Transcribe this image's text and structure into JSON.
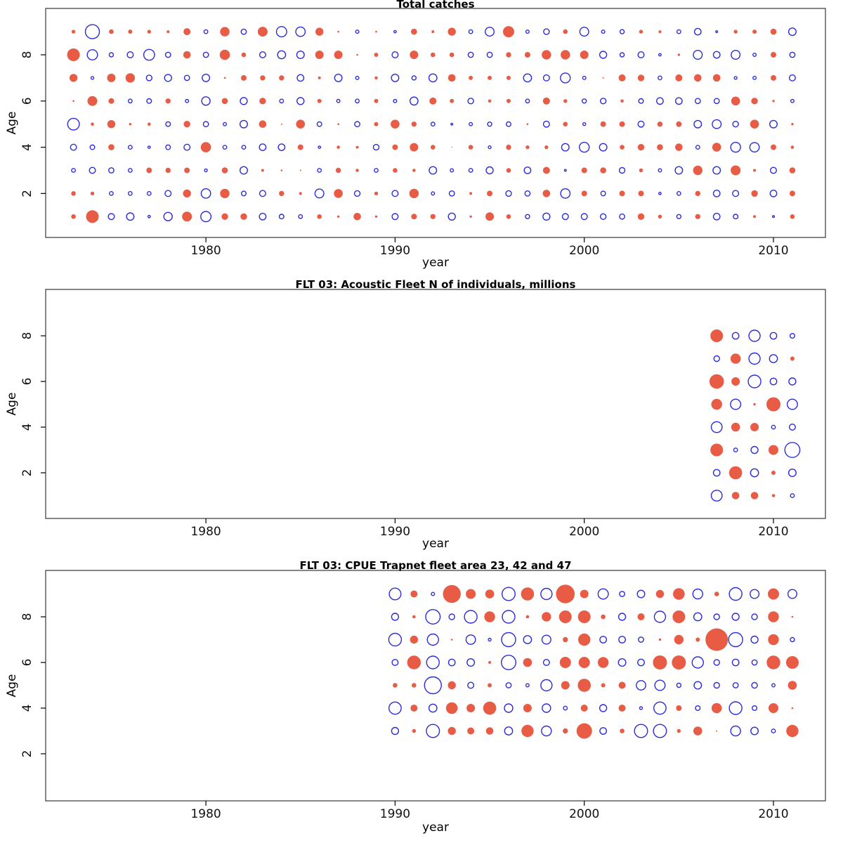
{
  "colors": {
    "bubble_positive_fill": "#E85C45",
    "bubble_negative_stroke": "#2C2CDC",
    "box_stroke": "#444444",
    "tick_stroke": "#000000"
  },
  "chart_data": [
    {
      "type": "bubble",
      "title": "Total catches",
      "xlabel": "year",
      "ylabel": "Age",
      "x_ticks": [
        1980,
        1990,
        2000,
        2010
      ],
      "y_ticks": [
        2,
        4,
        6,
        8
      ],
      "x_range": [
        1973,
        2011
      ],
      "age_range": [
        1,
        9
      ],
      "value_encoding": "signed bubble radius px: positive = red filled circle, negative = blue open circle",
      "rows": [
        {
          "age": 9,
          "start_year": 1973,
          "values": [
            2.7,
            -10,
            3.3,
            3,
            2.7,
            2,
            5,
            -2.7,
            6.7,
            -3.7,
            7,
            -7.3,
            -6.7,
            5.7,
            1.3,
            -2.3,
            1.3,
            -1.7,
            4.3,
            2,
            5.7,
            -2.7,
            -6.3,
            8,
            -2.3,
            -4,
            3.3,
            -6.3,
            -2.3,
            -3,
            2.7,
            2,
            -2.7,
            -4.7,
            -1.3,
            2.7,
            3,
            4.3,
            -5.3
          ]
        },
        {
          "age": 8,
          "start_year": 1973,
          "values": [
            9,
            -7.3,
            -3,
            -4.3,
            -7.7,
            -3.7,
            5.3,
            -3.7,
            7.3,
            3.3,
            -4.3,
            -5.7,
            -5.3,
            6,
            6,
            1.3,
            3,
            -4.3,
            6,
            3.3,
            3.3,
            -3.7,
            -3.7,
            3.7,
            4,
            6.7,
            6.7,
            6,
            -5,
            -3,
            -4.3,
            -1.7,
            1.7,
            -6.3,
            -4.7,
            -6.3,
            -2.3,
            4,
            -3.7
          ]
        },
        {
          "age": 7,
          "start_year": 1973,
          "values": [
            5.7,
            -2,
            6,
            6.7,
            -4,
            -5,
            -3.7,
            -5.3,
            1.3,
            4,
            3.7,
            3.7,
            -4.7,
            2,
            -5.3,
            -2.3,
            2.3,
            -5.3,
            -3,
            -5.7,
            5.3,
            3,
            3,
            3,
            -5.7,
            -4.3,
            -7,
            -2.3,
            1,
            5,
            4.7,
            -2.7,
            5,
            5.3,
            5.3,
            -2,
            -2.3,
            4,
            -4.3
          ]
        },
        {
          "age": 6,
          "start_year": 1973,
          "values": [
            1.3,
            7,
            4,
            -2.7,
            -3.3,
            3.7,
            -2.3,
            -6,
            4.3,
            -5,
            4.7,
            -2.7,
            -5,
            3,
            -2.3,
            -2.7,
            3,
            -2.3,
            -5.7,
            5,
            3,
            -4,
            2.3,
            3,
            -2.7,
            5,
            2.7,
            -3,
            -4,
            2.3,
            -3.3,
            -4.7,
            -4.7,
            -3.7,
            -3.7,
            6.3,
            4.7,
            1.7,
            -2.3
          ]
        },
        {
          "age": 5,
          "start_year": 1973,
          "values": [
            -8.3,
            2.3,
            5.7,
            1.7,
            2.3,
            -3.3,
            4.7,
            -3.7,
            -2.3,
            -5.3,
            5.3,
            1,
            6.3,
            -3.3,
            1.3,
            -3.7,
            3,
            6.3,
            3.7,
            -2.7,
            -1.3,
            -2.3,
            -3,
            -3.3,
            1.3,
            -4.3,
            3.3,
            -2,
            4,
            4,
            -4.3,
            3.7,
            4,
            -5.3,
            -6.3,
            -4,
            6.3,
            -5.3,
            1.7
          ]
        },
        {
          "age": 4,
          "start_year": 1973,
          "values": [
            -4.3,
            -3.3,
            4.3,
            -2.7,
            -1.7,
            -3.3,
            -4.3,
            7.3,
            -2.7,
            -2.7,
            -4.7,
            -4.7,
            4,
            -1.7,
            2.3,
            2,
            -4,
            4,
            6,
            3.3,
            0.7,
            3.3,
            -2,
            3.7,
            2.7,
            2.7,
            -5.3,
            -7,
            -5.3,
            3.3,
            4.7,
            4.3,
            5.3,
            -2.7,
            6.3,
            -7,
            -6.7,
            4,
            2.3
          ]
        },
        {
          "age": 3,
          "start_year": 1973,
          "values": [
            -2.7,
            -4.3,
            -3.7,
            -2.7,
            4,
            3.7,
            4,
            -2,
            4.3,
            -5.3,
            2,
            1.3,
            1,
            -2.7,
            3.7,
            2.3,
            -2.7,
            3.3,
            2.3,
            -5.3,
            -2.3,
            -2.7,
            -5,
            3.3,
            -4.7,
            5,
            -1.3,
            4,
            4.3,
            -4,
            2.7,
            -2.3,
            -5.3,
            6.7,
            -5.3,
            7,
            2,
            -4.3,
            4.3
          ]
        },
        {
          "age": 2,
          "start_year": 1973,
          "values": [
            3.3,
            2.7,
            -2.7,
            -2.7,
            -2.7,
            -4.3,
            5.7,
            -6.7,
            6.7,
            -3.3,
            -4.3,
            3.7,
            2,
            -6.3,
            6.3,
            -4,
            2.7,
            -4.3,
            6.7,
            -2.3,
            -3.7,
            2,
            4,
            -4,
            -3.7,
            5.3,
            -6.7,
            4,
            -3.3,
            4,
            4,
            -1.7,
            -2.7,
            3.7,
            -4.7,
            -4.3,
            4.7,
            -4.7,
            4
          ]
        },
        {
          "age": 1,
          "start_year": 1973,
          "values": [
            3.3,
            9,
            -4.3,
            -5.3,
            -1.7,
            -6,
            7,
            -7.3,
            4.7,
            4.7,
            -4.7,
            -3.3,
            -2.7,
            3.3,
            1.7,
            5.3,
            1.7,
            -4.3,
            4,
            3.7,
            -5,
            1.7,
            6,
            3.3,
            -3,
            -5,
            -4.3,
            -4.3,
            -4,
            -3.7,
            4.7,
            2.7,
            -3,
            3.7,
            -4.7,
            -3.3,
            2,
            -1.3,
            3.3
          ]
        }
      ]
    },
    {
      "type": "bubble",
      "title": "FLT 03: Acoustic Fleet  N of individuals, millions",
      "xlabel": "year",
      "ylabel": "Age",
      "x_ticks": [
        1980,
        1990,
        2000,
        2010
      ],
      "y_ticks": [
        2,
        4,
        6,
        8
      ],
      "x_range": [
        2007,
        2011
      ],
      "age_range": [
        1,
        8
      ],
      "value_encoding": "signed bubble radius px: positive = red filled circle, negative = blue open circle",
      "rows": [
        {
          "age": 8,
          "start_year": 2007,
          "values": [
            9,
            -4.7,
            -8,
            -4.7,
            -3.3
          ]
        },
        {
          "age": 7,
          "start_year": 2007,
          "values": [
            -4,
            7.3,
            -8,
            -5.7,
            3
          ]
        },
        {
          "age": 6,
          "start_year": 2007,
          "values": [
            10.3,
            6,
            -9,
            -4.7,
            -5
          ]
        },
        {
          "age": 5,
          "start_year": 2007,
          "values": [
            7.7,
            -7.3,
            1.7,
            10,
            -7.3
          ]
        },
        {
          "age": 4,
          "start_year": 2007,
          "values": [
            -7.7,
            6.3,
            6,
            -2.7,
            -4.3
          ]
        },
        {
          "age": 3,
          "start_year": 2007,
          "values": [
            9,
            -2.7,
            -5,
            7,
            -10.7
          ]
        },
        {
          "age": 2,
          "start_year": 2007,
          "values": [
            -4.7,
            9.3,
            -5.7,
            3,
            -5.3
          ]
        },
        {
          "age": 1,
          "start_year": 2007,
          "values": [
            -7.7,
            5.3,
            5.3,
            2.3,
            -2.7
          ]
        }
      ]
    },
    {
      "type": "bubble",
      "title": "FLT 03: CPUE Trapnet fleet area 23, 42 and 47",
      "xlabel": "year",
      "ylabel": "Age",
      "x_ticks": [
        1980,
        1990,
        2000,
        2010
      ],
      "y_ticks": [
        2,
        4,
        6,
        8
      ],
      "x_range": [
        1990,
        2011
      ],
      "age_range": [
        1,
        9
      ],
      "value_encoding": "signed bubble radius px: positive = red filled circle, negative = blue open circle",
      "rows": [
        {
          "age": 9,
          "start_year": 1990,
          "values": [
            -8.3,
            5,
            -2.3,
            12.7,
            7,
            6.3,
            -9.3,
            9.3,
            -8,
            13.3,
            6,
            -7.3,
            -3.7,
            -5.3,
            5.7,
            8.3,
            -7,
            3.3,
            -9,
            -6.3,
            8,
            -6.3
          ]
        },
        {
          "age": 8,
          "start_year": 1990,
          "values": [
            -5,
            2.3,
            -10.3,
            -4,
            -9,
            7.7,
            -9,
            2.3,
            6.7,
            9,
            9,
            3.3,
            -5,
            5,
            -8,
            9,
            -5.7,
            -4,
            -5,
            -4,
            7.7,
            1.3
          ]
        },
        {
          "age": 7,
          "start_year": 1990,
          "values": [
            -9,
            5.7,
            -8,
            1.3,
            -6.7,
            -2,
            -10,
            -5.7,
            -6.3,
            3.7,
            8.7,
            -4.7,
            -4.7,
            -3.7,
            1.7,
            6.7,
            3,
            16,
            -10,
            -5,
            7.7,
            -3
          ]
        },
        {
          "age": 6,
          "start_year": 1990,
          "values": [
            -4.3,
            9.7,
            -9,
            -4.7,
            -5.3,
            2,
            -10.3,
            6.3,
            -4.3,
            8,
            8,
            7.7,
            -5.3,
            -4.7,
            10,
            10,
            -8,
            -4,
            -4.7,
            -3.7,
            9.7,
            9
          ]
        },
        {
          "age": 5,
          "start_year": 1990,
          "values": [
            3.3,
            3.3,
            -12,
            5.7,
            -4.3,
            3,
            -3.7,
            -2.3,
            -8,
            6,
            9.3,
            3,
            5,
            -6.7,
            -7.3,
            -3,
            -5.3,
            -4,
            -3.7,
            -4,
            -2.3,
            6.3
          ]
        },
        {
          "age": 4,
          "start_year": 1990,
          "values": [
            -8.7,
            5,
            -5.7,
            8.3,
            6,
            9.3,
            -6,
            6,
            -6,
            -2.7,
            5,
            -5,
            5,
            -2,
            -8.7,
            4,
            -3.3,
            7.3,
            -9,
            -3.3,
            7,
            1.3
          ]
        },
        {
          "age": 3,
          "start_year": 1990,
          "values": [
            -5,
            2.7,
            -9.3,
            5.7,
            5,
            5.3,
            -5.7,
            8.7,
            -7,
            3.7,
            11,
            -4.7,
            3.3,
            -9.3,
            -9.3,
            2.7,
            6.3,
            1,
            -7,
            -5.3,
            -2.7,
            8.7
          ]
        }
      ]
    }
  ]
}
